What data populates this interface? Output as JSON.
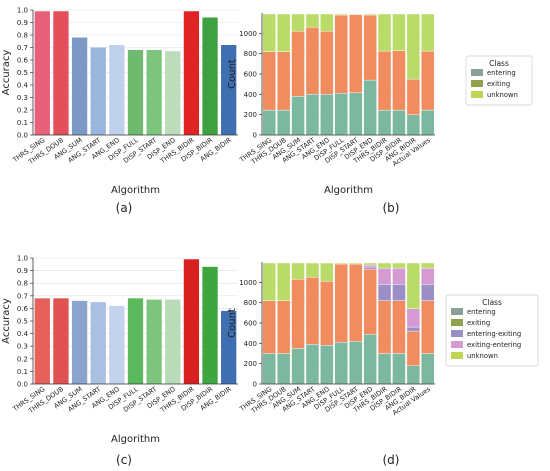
{
  "panel_labels": [
    "(a)",
    "(b)",
    "(c)",
    "(d)"
  ],
  "colors": {
    "a_bars": [
      "#e8617a",
      "#e34f5b",
      "#7c99c6",
      "#9ab6dd",
      "#bfd0ea",
      "#6fba6f",
      "#7dc57d",
      "#bcdcbc",
      "#e02424",
      "#3fa03f",
      "#3d6fb1"
    ],
    "c_bars": [
      "#e8605a",
      "#e05151",
      "#8aa4cd",
      "#a9c0e2",
      "#c3d3ec",
      "#5cb85c",
      "#7dc57d",
      "#b9dbb9",
      "#d82020",
      "#3ea63e",
      "#3d6fb1"
    ],
    "entering": "#7cb8a0",
    "exiting": "#f08c5e",
    "unknown": "#b9dc68",
    "legend_entering": "#8a9f95",
    "legend_exiting": "#8fa34a",
    "legend_unknown": "#c1d456",
    "entering_exiting": "#9c8fc8",
    "exiting_entering": "#d59ad2",
    "legend_entering_exiting": "#9a8fc2",
    "legend_exiting_entering": "#d69bd3"
  },
  "chart_data": [
    {
      "id": "a",
      "type": "bar",
      "title": "",
      "xlabel": "Algorithm",
      "ylabel": "Accuracy",
      "ylim": [
        0,
        1.0
      ],
      "yticks": [
        "0.0",
        "0.1",
        "0.2",
        "0.3",
        "0.4",
        "0.5",
        "0.6",
        "0.7",
        "0.8",
        "0.9",
        "1.0"
      ],
      "categories": [
        "THRS_SING",
        "THRS_DOUB",
        "ANG_SUM",
        "ANG_START",
        "ANG_END",
        "DISP_FULL",
        "DISP_START",
        "DISP_END",
        "THRS_BIDIR",
        "DISP_BIDIR",
        "ANG_BIDIR"
      ],
      "values": [
        0.99,
        0.99,
        0.78,
        0.7,
        0.72,
        0.68,
        0.68,
        0.67,
        0.99,
        0.94,
        0.72
      ]
    },
    {
      "id": "b",
      "type": "bar",
      "stacked": true,
      "title": "",
      "xlabel": "Algorithm",
      "ylabel": "Count",
      "ylim": [
        0,
        1200
      ],
      "yticks": [
        "0",
        "200",
        "400",
        "600",
        "800",
        "1000"
      ],
      "categories": [
        "THRS_SING",
        "THRS_DOUB",
        "ANG_SUM",
        "ANG_START",
        "ANG_END",
        "DISP_FULL",
        "DISP_START",
        "DISP_END",
        "THRS_BIDIR",
        "DISP_BIDIR",
        "ANG_BIDIR",
        "Actual Values"
      ],
      "legend_title": "Class",
      "legend_position": "right",
      "series": [
        {
          "name": "entering",
          "values": [
            245,
            245,
            380,
            400,
            400,
            410,
            415,
            540,
            245,
            245,
            200,
            245
          ]
        },
        {
          "name": "exiting",
          "values": [
            575,
            575,
            640,
            660,
            620,
            770,
            770,
            640,
            580,
            585,
            350,
            580
          ]
        },
        {
          "name": "unknown",
          "values": [
            370,
            370,
            170,
            130,
            170,
            10,
            5,
            10,
            365,
            360,
            640,
            365
          ]
        }
      ]
    },
    {
      "id": "c",
      "type": "bar",
      "title": "",
      "xlabel": "Algorithm",
      "ylabel": "Accuracy",
      "ylim": [
        0,
        1.0
      ],
      "yticks": [
        "0.0",
        "0.1",
        "0.2",
        "0.3",
        "0.4",
        "0.5",
        "0.6",
        "0.7",
        "0.8",
        "0.9",
        "1.0"
      ],
      "categories": [
        "THRS_SING",
        "THRS_DOUB",
        "ANG_SUM",
        "ANG_START",
        "ANG_END",
        "DISP_FULL",
        "DISP_START",
        "DISP_END",
        "THRS_BIDIR",
        "DISP_BIDIR",
        "ANG_BIDIR"
      ],
      "values": [
        0.68,
        0.68,
        0.66,
        0.65,
        0.62,
        0.68,
        0.67,
        0.67,
        0.99,
        0.93,
        0.58
      ]
    },
    {
      "id": "d",
      "type": "bar",
      "stacked": true,
      "title": "",
      "xlabel": "",
      "ylabel": "Count",
      "ylim": [
        0,
        1200
      ],
      "yticks": [
        "0",
        "200",
        "400",
        "600",
        "800",
        "1000"
      ],
      "categories": [
        "THRS_SING",
        "THRS_DOUB",
        "ANG_SUM",
        "ANG_START",
        "ANG_END",
        "DISP_FULL",
        "DISP_START",
        "DISP_END",
        "THRS_BIDIR",
        "DISP_BIDIR",
        "ANG_BIDIR",
        "Actual Values"
      ],
      "legend_title": "Class",
      "legend_position": "right",
      "series": [
        {
          "name": "entering",
          "values": [
            300,
            300,
            350,
            390,
            380,
            410,
            420,
            490,
            300,
            300,
            180,
            300
          ]
        },
        {
          "name": "exiting",
          "values": [
            520,
            520,
            680,
            660,
            630,
            770,
            760,
            640,
            520,
            520,
            340,
            520
          ]
        },
        {
          "name": "entering-exiting",
          "values": [
            0,
            0,
            0,
            0,
            0,
            0,
            0,
            20,
            160,
            160,
            40,
            160
          ]
        },
        {
          "name": "exiting-entering",
          "values": [
            0,
            0,
            0,
            0,
            0,
            0,
            0,
            20,
            160,
            160,
            180,
            160
          ]
        },
        {
          "name": "unknown",
          "values": [
            370,
            370,
            160,
            140,
            180,
            10,
            10,
            20,
            50,
            50,
            450,
            50
          ]
        }
      ]
    }
  ]
}
